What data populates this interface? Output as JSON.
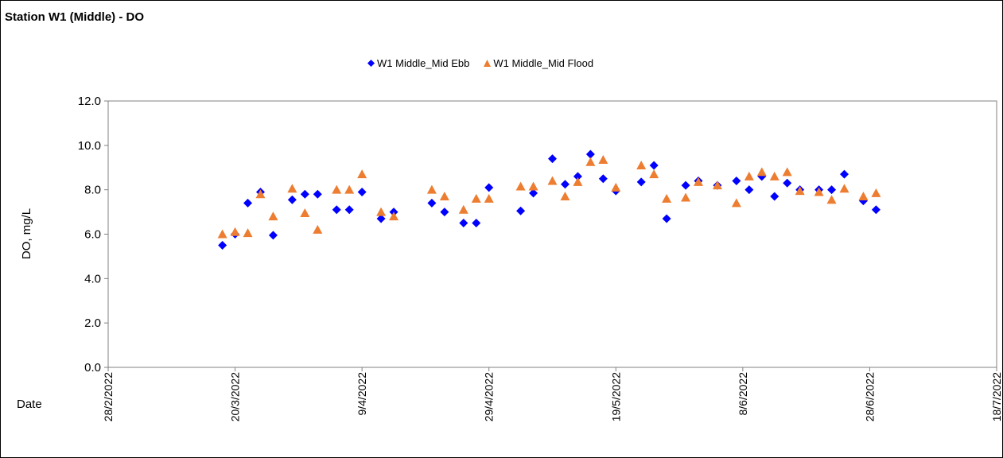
{
  "chart_data": {
    "type": "scatter",
    "title": "Station W1 (Middle) - DO",
    "xlabel": "Date",
    "ylabel": "DO, mg/L",
    "ylim": [
      0,
      12
    ],
    "yticks": [
      "0.0",
      "2.0",
      "4.0",
      "6.0",
      "8.0",
      "10.0",
      "12.0"
    ],
    "xlim": [
      "2022-02-28",
      "2022-07-18"
    ],
    "xticks": [
      "28/2/2022",
      "20/3/2022",
      "9/4/2022",
      "29/4/2022",
      "19/5/2022",
      "8/6/2022",
      "28/6/2022",
      "18/7/2022"
    ],
    "xtick_dates": [
      "2022-02-28",
      "2022-03-20",
      "2022-04-09",
      "2022-04-29",
      "2022-05-19",
      "2022-06-08",
      "2022-06-28",
      "2022-07-18"
    ],
    "legend_position": "top-center",
    "grid": false,
    "series": [
      {
        "name": "W1 Middle_Mid Ebb",
        "marker": "diamond",
        "color": "#0000FF",
        "points": [
          [
            "2022-03-18",
            5.5
          ],
          [
            "2022-03-20",
            6.0
          ],
          [
            "2022-03-22",
            7.4
          ],
          [
            "2022-03-24",
            7.9
          ],
          [
            "2022-03-26",
            5.95
          ],
          [
            "2022-03-29",
            7.55
          ],
          [
            "2022-03-31",
            7.8
          ],
          [
            "2022-04-02",
            7.8
          ],
          [
            "2022-04-05",
            7.1
          ],
          [
            "2022-04-07",
            7.1
          ],
          [
            "2022-04-09",
            7.9
          ],
          [
            "2022-04-12",
            6.7
          ],
          [
            "2022-04-14",
            7.0
          ],
          [
            "2022-04-20",
            7.4
          ],
          [
            "2022-04-22",
            7.0
          ],
          [
            "2022-04-25",
            6.5
          ],
          [
            "2022-04-27",
            6.5
          ],
          [
            "2022-04-29",
            8.1
          ],
          [
            "2022-05-04",
            7.05
          ],
          [
            "2022-05-06",
            7.85
          ],
          [
            "2022-05-09",
            9.4
          ],
          [
            "2022-05-11",
            8.25
          ],
          [
            "2022-05-13",
            8.6
          ],
          [
            "2022-05-15",
            9.6
          ],
          [
            "2022-05-17",
            8.5
          ],
          [
            "2022-05-19",
            7.95
          ],
          [
            "2022-05-23",
            8.35
          ],
          [
            "2022-05-25",
            9.1
          ],
          [
            "2022-05-27",
            6.7
          ],
          [
            "2022-05-30",
            8.2
          ],
          [
            "2022-06-01",
            8.4
          ],
          [
            "2022-06-04",
            8.2
          ],
          [
            "2022-06-07",
            8.4
          ],
          [
            "2022-06-09",
            8.0
          ],
          [
            "2022-06-11",
            8.6
          ],
          [
            "2022-06-13",
            7.7
          ],
          [
            "2022-06-15",
            8.3
          ],
          [
            "2022-06-17",
            8.0
          ],
          [
            "2022-06-20",
            8.0
          ],
          [
            "2022-06-22",
            8.0
          ],
          [
            "2022-06-24",
            8.7
          ],
          [
            "2022-06-27",
            7.5
          ],
          [
            "2022-06-29",
            7.1
          ]
        ]
      },
      {
        "name": "W1 Middle_Mid Flood",
        "marker": "triangle",
        "color": "#ED7D31",
        "points": [
          [
            "2022-03-18",
            6.0
          ],
          [
            "2022-03-20",
            6.1
          ],
          [
            "2022-03-22",
            6.05
          ],
          [
            "2022-03-24",
            7.8
          ],
          [
            "2022-03-26",
            6.8
          ],
          [
            "2022-03-29",
            8.05
          ],
          [
            "2022-03-31",
            6.95
          ],
          [
            "2022-04-02",
            6.2
          ],
          [
            "2022-04-05",
            8.0
          ],
          [
            "2022-04-07",
            8.0
          ],
          [
            "2022-04-09",
            8.7
          ],
          [
            "2022-04-12",
            7.0
          ],
          [
            "2022-04-14",
            6.8
          ],
          [
            "2022-04-20",
            8.0
          ],
          [
            "2022-04-22",
            7.7
          ],
          [
            "2022-04-25",
            7.1
          ],
          [
            "2022-04-27",
            7.6
          ],
          [
            "2022-04-29",
            7.6
          ],
          [
            "2022-05-04",
            8.15
          ],
          [
            "2022-05-06",
            8.15
          ],
          [
            "2022-05-09",
            8.4
          ],
          [
            "2022-05-11",
            7.7
          ],
          [
            "2022-05-13",
            8.35
          ],
          [
            "2022-05-15",
            9.25
          ],
          [
            "2022-05-17",
            9.35
          ],
          [
            "2022-05-19",
            8.1
          ],
          [
            "2022-05-23",
            9.1
          ],
          [
            "2022-05-25",
            8.7
          ],
          [
            "2022-05-27",
            7.6
          ],
          [
            "2022-05-30",
            7.65
          ],
          [
            "2022-06-01",
            8.35
          ],
          [
            "2022-06-04",
            8.2
          ],
          [
            "2022-06-07",
            7.4
          ],
          [
            "2022-06-09",
            8.6
          ],
          [
            "2022-06-11",
            8.8
          ],
          [
            "2022-06-13",
            8.6
          ],
          [
            "2022-06-15",
            8.8
          ],
          [
            "2022-06-17",
            7.95
          ],
          [
            "2022-06-20",
            7.9
          ],
          [
            "2022-06-22",
            7.55
          ],
          [
            "2022-06-24",
            8.05
          ],
          [
            "2022-06-27",
            7.7
          ],
          [
            "2022-06-29",
            7.85
          ]
        ]
      }
    ]
  }
}
